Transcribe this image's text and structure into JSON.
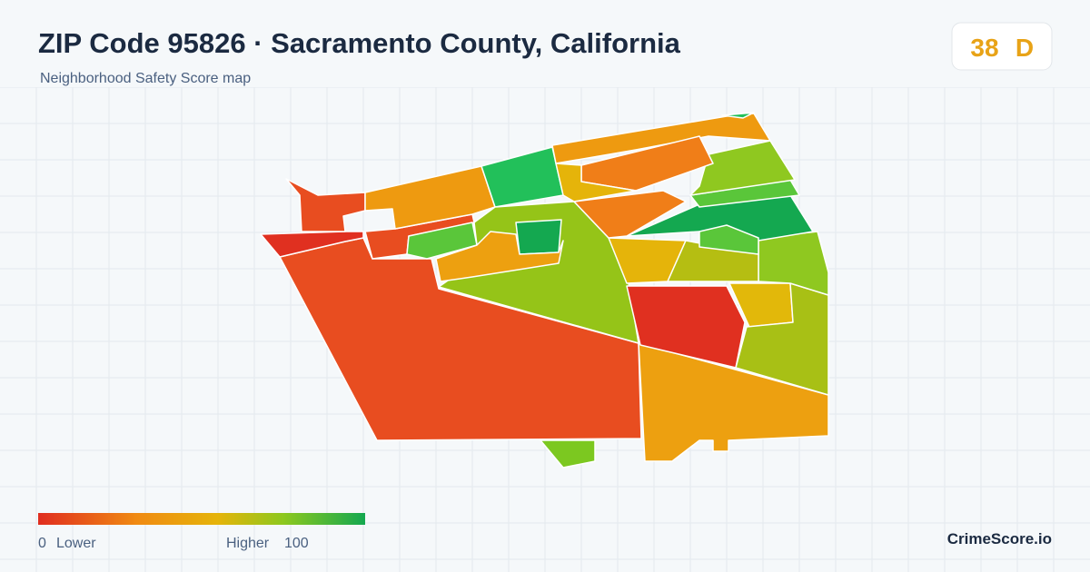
{
  "header": {
    "title": "ZIP Code 95826 · Sacramento County, California",
    "subtitle": "Neighborhood Safety Score map"
  },
  "score": {
    "value": "38",
    "grade": "D"
  },
  "legend": {
    "min": "0",
    "min_label": "Lower",
    "max_label": "Higher",
    "max": "100"
  },
  "brand": "CrimeScore.io"
}
